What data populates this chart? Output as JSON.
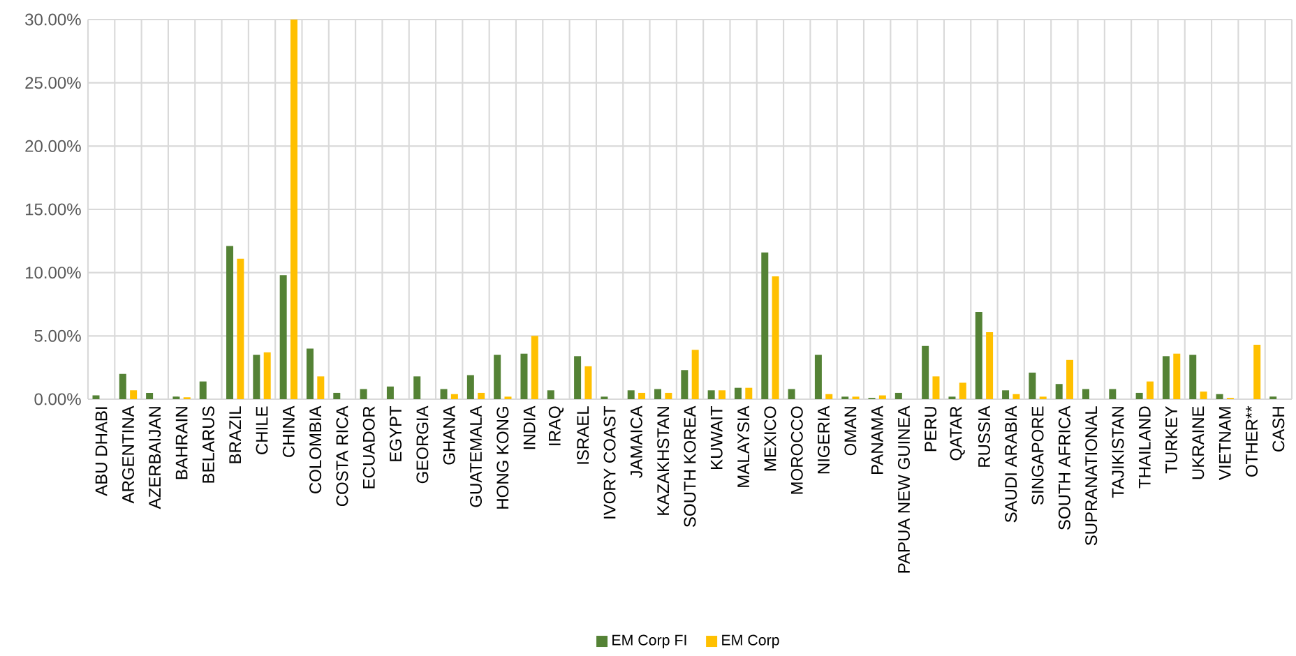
{
  "chart_data": {
    "type": "bar",
    "categories": [
      "ABU DHABI",
      "ARGENTINA",
      "AZERBAIJAN",
      "BAHRAIN",
      "BELARUS",
      "BRAZIL",
      "CHILE",
      "CHINA",
      "COLOMBIA",
      "COSTA RICA",
      "ECUADOR",
      "EGYPT",
      "GEORGIA",
      "GHANA",
      "GUATEMALA",
      "HONG KONG",
      "INDIA",
      "IRAQ",
      "ISRAEL",
      "IVORY COAST",
      "JAMAICA",
      "KAZAKHSTAN",
      "SOUTH KOREA",
      "KUWAIT",
      "MALAYSIA",
      "MEXICO",
      "MOROCCO",
      "NIGERIA",
      "OMAN",
      "PANAMA",
      "PAPUA NEW GUINEA",
      "PERU",
      "QATAR",
      "RUSSIA",
      "SAUDI ARABIA",
      "SINGAPORE",
      "SOUTH AFRICA",
      "SUPRANATIONAL",
      "TAJIKISTAN",
      "THAILAND",
      "TURKEY",
      "UKRAINE",
      "VIETNAM",
      "OTHER**",
      "CASH"
    ],
    "series": [
      {
        "name": "EM Corp FI",
        "color": "#548235",
        "values": [
          0.3,
          2.0,
          0.5,
          0.2,
          1.4,
          12.1,
          3.5,
          9.8,
          4.0,
          0.5,
          0.8,
          1.0,
          1.8,
          0.8,
          1.9,
          3.5,
          3.6,
          0.7,
          3.4,
          0.2,
          0.7,
          0.8,
          2.3,
          0.7,
          0.9,
          11.6,
          0.8,
          3.5,
          0.2,
          0.1,
          0.5,
          4.2,
          0.2,
          6.9,
          0.7,
          2.1,
          1.2,
          0.8,
          0.8,
          0.5,
          3.4,
          3.5,
          0.4,
          0,
          0.2
        ]
      },
      {
        "name": "EM Corp",
        "color": "#ffc000",
        "values": [
          0,
          0.7,
          0,
          0.15,
          0,
          11.1,
          3.7,
          30,
          1.8,
          0,
          0,
          0,
          0,
          0.4,
          0.5,
          0.2,
          5.0,
          0,
          2.6,
          0,
          0.5,
          0.5,
          3.9,
          0.7,
          0.9,
          9.7,
          0,
          0.4,
          0.2,
          0.3,
          0,
          1.8,
          1.3,
          5.3,
          0.4,
          0.2,
          3.1,
          0,
          0,
          1.4,
          3.6,
          0.6,
          0.1,
          4.3,
          0
        ]
      }
    ],
    "ylim": [
      0,
      30
    ],
    "yticks": [
      {
        "value": 0,
        "label": "0.00%"
      },
      {
        "value": 5,
        "label": "5.00%"
      },
      {
        "value": 10,
        "label": "10.00%"
      },
      {
        "value": 15,
        "label": "15.00%"
      },
      {
        "value": 20,
        "label": "20.00%"
      },
      {
        "value": 25,
        "label": "25.00%"
      },
      {
        "value": 30,
        "label": "30.00%"
      }
    ],
    "grid": true,
    "legend": "bottom"
  }
}
